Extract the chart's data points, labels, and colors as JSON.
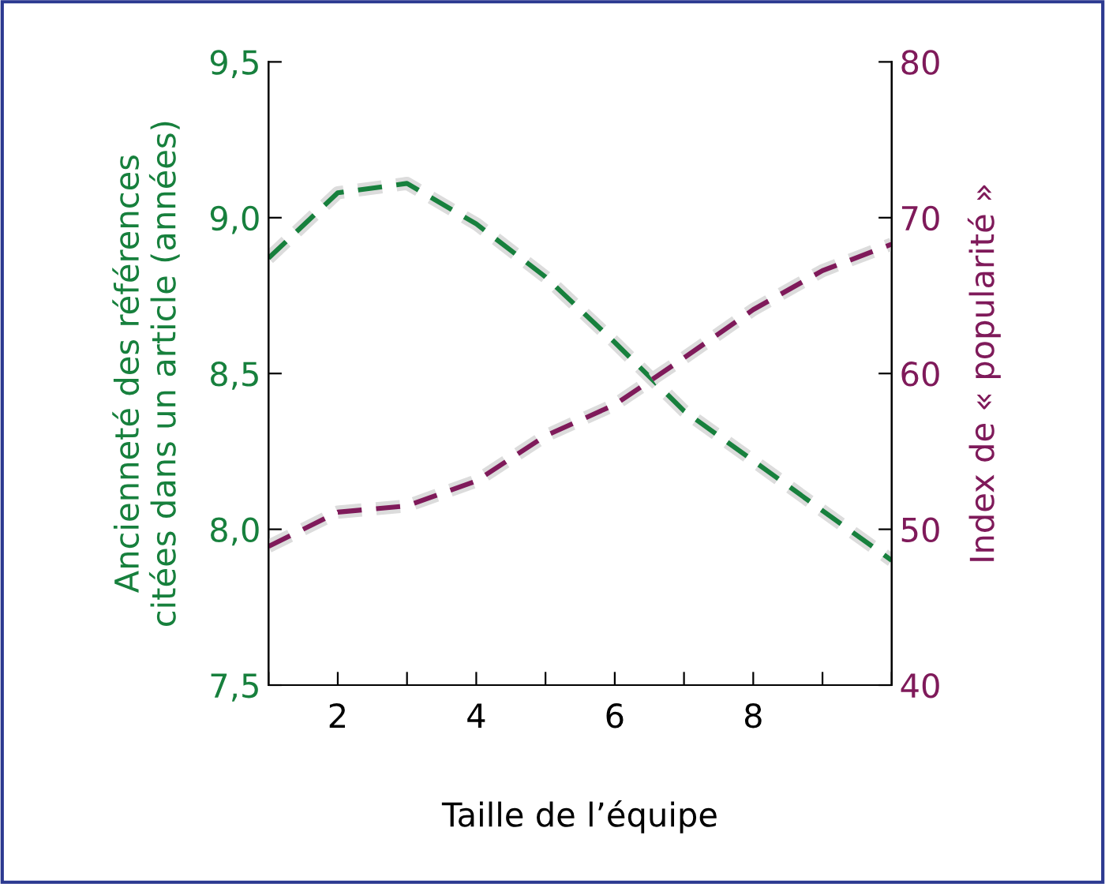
{
  "chart_data": {
    "type": "line",
    "xlabel": "Taille de l’équipe",
    "ylabel": "Ancienneté des références\ncitées dans un article (années)",
    "y2label": "Index de « popularité »",
    "x": [
      1,
      2,
      3,
      4,
      5,
      6,
      7,
      8,
      9,
      10
    ],
    "series": [
      {
        "color": "#17803d",
        "values": [
          8.87,
          9.08,
          9.11,
          8.98,
          8.81,
          8.6,
          8.38,
          8.22,
          8.06,
          7.9
        ]
      },
      {
        "color": "#7f1a5a",
        "axis": "y2",
        "values": [
          48.9,
          51.1,
          51.5,
          53.1,
          56.0,
          58.0,
          61.0,
          64.1,
          66.6,
          68.3
        ]
      }
    ],
    "xlim": [
      1,
      10
    ],
    "xticks": [
      {
        "value": 1,
        "label": null
      },
      2,
      {
        "value": 3,
        "label": null
      },
      4,
      {
        "value": 5,
        "label": null
      },
      6,
      {
        "value": 7,
        "label": null
      },
      8,
      {
        "value": 9,
        "label": null
      },
      {
        "value": 10,
        "label": null
      }
    ],
    "ylim": [
      7.5,
      9.5
    ],
    "yticks": [
      {
        "value": 7.5,
        "label": "7,5"
      },
      {
        "value": 8.0,
        "label": "8,0"
      },
      {
        "value": 8.5,
        "label": "8,5"
      },
      {
        "value": 9.0,
        "label": "9,0"
      },
      {
        "value": 9.5,
        "label": "9,5"
      }
    ],
    "y2lim": [
      40,
      80
    ],
    "y2ticks": [
      40,
      50,
      60,
      70,
      80
    ],
    "line_style": "dashed",
    "marker": "none",
    "grid": false,
    "legend": false
  }
}
